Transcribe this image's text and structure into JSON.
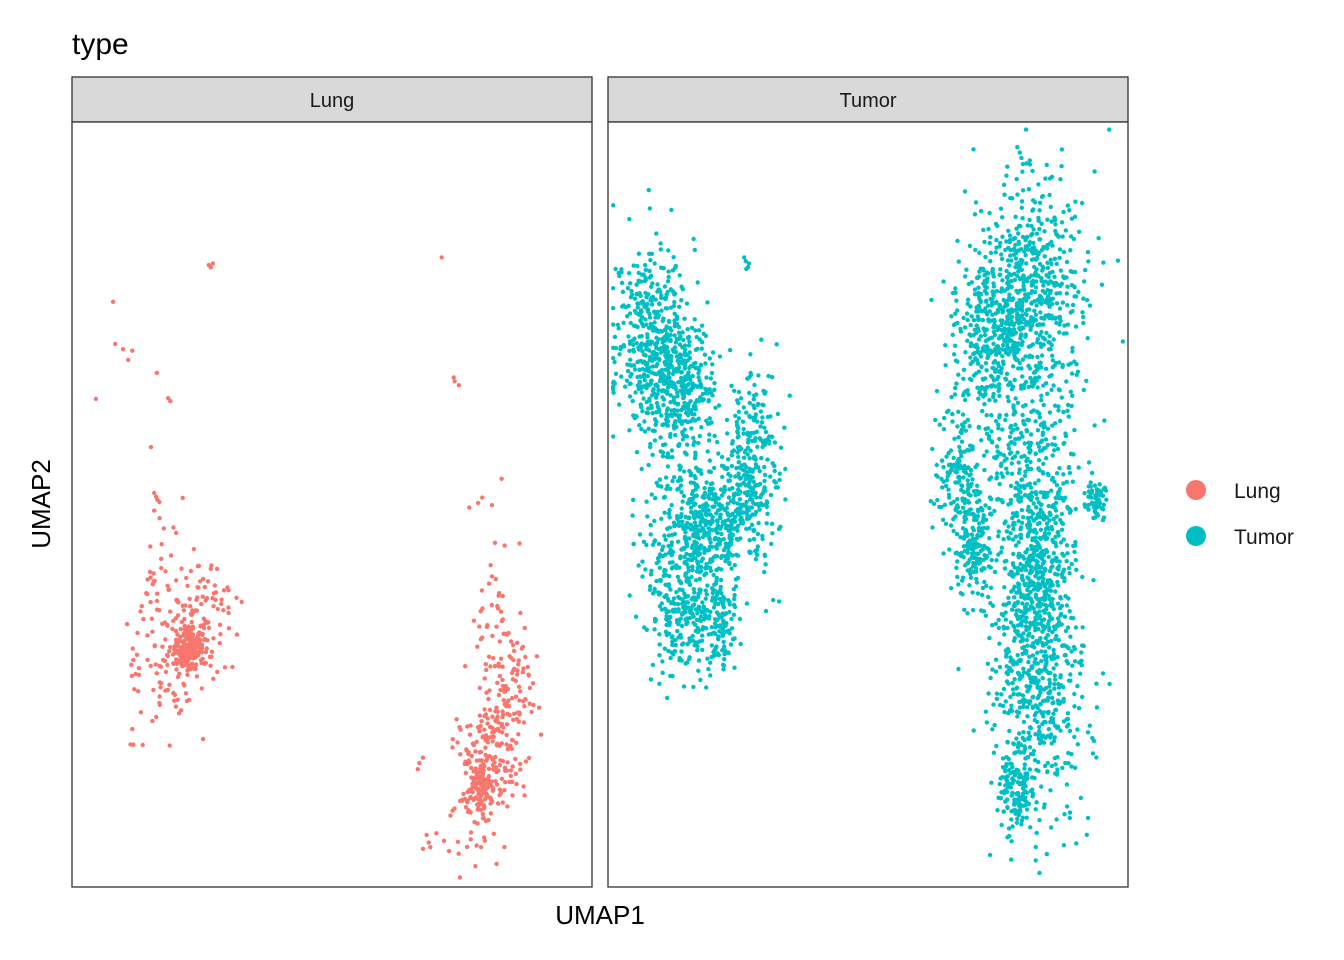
{
  "chart_data": {
    "type": "scatter",
    "title": "type",
    "xlabel": "UMAP1",
    "ylabel": "UMAP2",
    "xlim": [
      0,
      100
    ],
    "ylim": [
      0,
      100
    ],
    "grid": false,
    "legend": {
      "position": "right",
      "title": "",
      "entries": [
        {
          "name": "Lung",
          "color": "#F8766D"
        },
        {
          "name": "Tumor",
          "color": "#00BFC4"
        }
      ]
    },
    "facets": [
      {
        "label": "Lung",
        "color": "#F8766D",
        "seed": 7,
        "points": [
          [
            26.3,
            81.3
          ],
          [
            27.1,
            81.5
          ],
          [
            26.7,
            81.0
          ],
          [
            71.1,
            82.3
          ],
          [
            7.9,
            76.5
          ],
          [
            8.3,
            71.0
          ],
          [
            9.8,
            70.3
          ],
          [
            10.8,
            68.9
          ],
          [
            11.6,
            70.1
          ],
          [
            16.3,
            67.2
          ],
          [
            4.6,
            63.8
          ],
          [
            18.5,
            63.9
          ],
          [
            18.9,
            63.5
          ],
          [
            73.4,
            66.6
          ],
          [
            74.4,
            65.6
          ],
          [
            73.6,
            66.1
          ],
          [
            15.2,
            57.5
          ],
          [
            78.1,
            50.2
          ],
          [
            78.9,
            50.9
          ],
          [
            15.8,
            51.5
          ],
          [
            16.2,
            51.0
          ],
          [
            76.4,
            49.6
          ],
          [
            19.5,
            47.0
          ],
          [
            15.8,
            49.2
          ],
          [
            66.8,
            16.2
          ],
          [
            67.5,
            16.9
          ],
          [
            66.5,
            15.4
          ],
          [
            68.6,
            5.8
          ],
          [
            68.2,
            6.8
          ],
          [
            68.9,
            5.2
          ],
          [
            67.5,
            5.0
          ]
        ],
        "clusters": [
          {
            "n": 210,
            "cx": 22.0,
            "cy": 32.0,
            "sx": 3.0,
            "sy": 6.0,
            "rot": -0.55
          },
          {
            "n": 160,
            "cx": 22.5,
            "cy": 31.0,
            "sx": 1.4,
            "sy": 1.2,
            "rot": 0
          },
          {
            "n": 45,
            "cx": 16.0,
            "cy": 39.0,
            "sx": 2.0,
            "sy": 6.0,
            "rot": -0.3
          },
          {
            "n": 230,
            "cx": 80.5,
            "cy": 17.0,
            "sx": 3.2,
            "sy": 6.5,
            "rot": -0.35
          },
          {
            "n": 90,
            "cx": 78.5,
            "cy": 13.0,
            "sx": 1.5,
            "sy": 2.0,
            "rot": 0
          },
          {
            "n": 70,
            "cx": 82.5,
            "cy": 32.0,
            "sx": 2.4,
            "sy": 7.0,
            "rot": 0
          },
          {
            "n": 20,
            "cx": 87.0,
            "cy": 26.0,
            "sx": 1.5,
            "sy": 5.0,
            "rot": 0
          }
        ]
      },
      {
        "label": "Tumor",
        "color": "#00BFC4",
        "seed": 11,
        "points": [
          [
            79.5,
            95.3
          ],
          [
            79.8,
            94.5
          ],
          [
            79.2,
            96.0
          ],
          [
            79.7,
            93.5
          ],
          [
            26.5,
            81.8
          ],
          [
            26.9,
            81.0
          ],
          [
            26.2,
            82.3
          ],
          [
            27.1,
            81.5
          ],
          [
            26.6,
            80.8
          ]
        ],
        "clusters": [
          {
            "n": 520,
            "cx": 9.0,
            "cy": 71.0,
            "sx": 3.8,
            "sy": 6.5,
            "rot": 0.1
          },
          {
            "n": 230,
            "cx": 14.5,
            "cy": 65.0,
            "sx": 3.0,
            "sy": 4.0,
            "rot": 0
          },
          {
            "n": 380,
            "cx": 16.5,
            "cy": 45.0,
            "sx": 4.6,
            "sy": 5.5,
            "rot": 0
          },
          {
            "n": 200,
            "cx": 22.5,
            "cy": 48.0,
            "sx": 3.5,
            "sy": 3.0,
            "rot": 0
          },
          {
            "n": 180,
            "cx": 14.0,
            "cy": 35.0,
            "sx": 3.0,
            "sy": 4.0,
            "rot": 0
          },
          {
            "n": 260,
            "cx": 27.5,
            "cy": 55.0,
            "sx": 2.8,
            "sy": 6.0,
            "rot": 0
          },
          {
            "n": 120,
            "cx": 21.0,
            "cy": 34.0,
            "sx": 2.3,
            "sy": 3.2,
            "rot": 0
          },
          {
            "n": 560,
            "cx": 82.0,
            "cy": 77.0,
            "sx": 5.0,
            "sy": 8.5,
            "rot": 0
          },
          {
            "n": 400,
            "cx": 74.0,
            "cy": 72.0,
            "sx": 3.8,
            "sy": 6.5,
            "rot": 0
          },
          {
            "n": 120,
            "cx": 67.0,
            "cy": 54.0,
            "sx": 2.0,
            "sy": 4.5,
            "rot": 0
          },
          {
            "n": 200,
            "cx": 70.0,
            "cy": 46.0,
            "sx": 1.6,
            "sy": 4.0,
            "rot": 0
          },
          {
            "n": 500,
            "cx": 82.0,
            "cy": 48.0,
            "sx": 4.2,
            "sy": 9.0,
            "rot": 0
          },
          {
            "n": 400,
            "cx": 83.0,
            "cy": 24.0,
            "sx": 5.0,
            "sy": 7.5,
            "rot": 0
          },
          {
            "n": 260,
            "cx": 82.0,
            "cy": 38.0,
            "sx": 3.0,
            "sy": 6.5,
            "rot": 0
          },
          {
            "n": 120,
            "cx": 78.5,
            "cy": 12.5,
            "sx": 1.8,
            "sy": 2.8,
            "rot": 0
          },
          {
            "n": 60,
            "cx": 93.8,
            "cy": 50.8,
            "sx": 1.1,
            "sy": 1.2,
            "rot": 0
          }
        ]
      }
    ]
  }
}
